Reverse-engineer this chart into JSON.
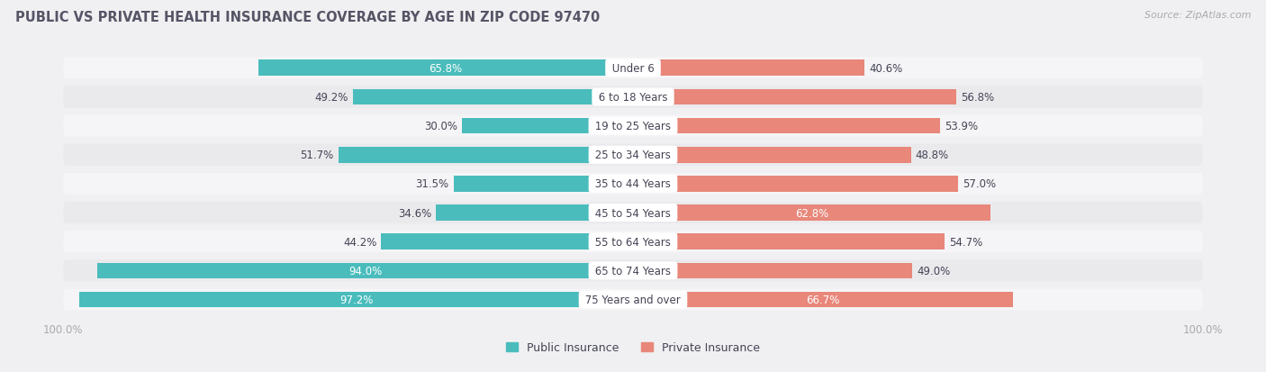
{
  "title": "PUBLIC VS PRIVATE HEALTH INSURANCE COVERAGE BY AGE IN ZIP CODE 97470",
  "source": "Source: ZipAtlas.com",
  "categories": [
    "Under 6",
    "6 to 18 Years",
    "19 to 25 Years",
    "25 to 34 Years",
    "35 to 44 Years",
    "45 to 54 Years",
    "55 to 64 Years",
    "65 to 74 Years",
    "75 Years and over"
  ],
  "public_values": [
    65.8,
    49.2,
    30.0,
    51.7,
    31.5,
    34.6,
    44.2,
    94.0,
    97.2
  ],
  "private_values": [
    40.6,
    56.8,
    53.9,
    48.8,
    57.0,
    62.8,
    54.7,
    49.0,
    66.7
  ],
  "public_color": "#4abcbc",
  "private_color": "#e8877a",
  "row_bg_colors": [
    "#f5f5f7",
    "#eaeaed"
  ],
  "title_color": "#555566",
  "label_dark_color": "#444455",
  "label_light_color": "#ffffff",
  "axis_label_color": "#aaaaaa",
  "source_color": "#aaaaaa",
  "max_val": 100.0,
  "white_text_threshold": 12.0,
  "legend_pub": "Public Insurance",
  "legend_priv": "Private Insurance",
  "figwidth": 14.06,
  "figheight": 4.14
}
